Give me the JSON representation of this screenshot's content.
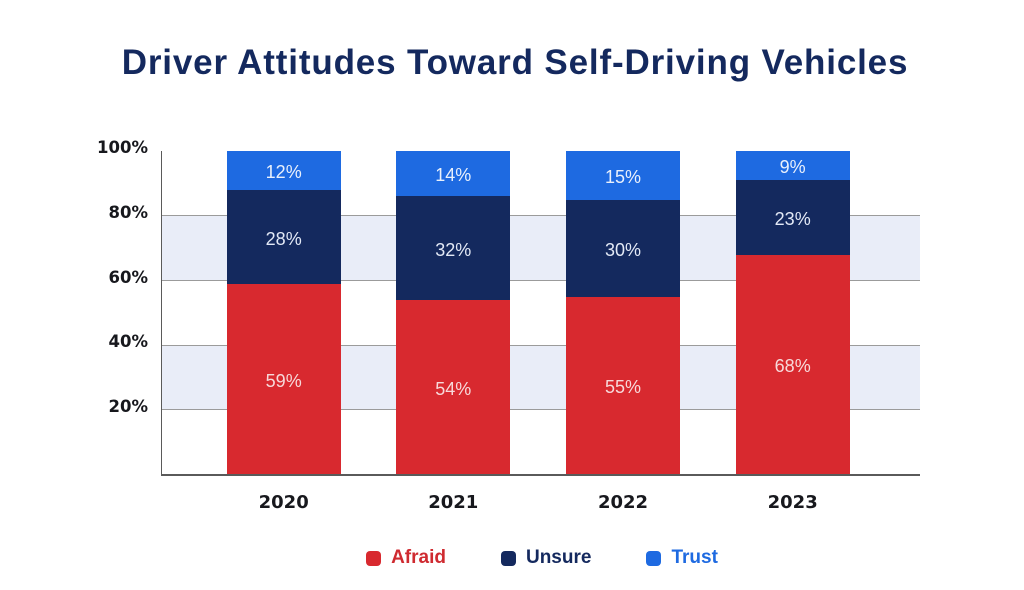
{
  "title": {
    "text": "Driver Attitudes Toward Self-Driving Vehicles",
    "color": "#14295e"
  },
  "chart_data": {
    "type": "bar",
    "stacked": true,
    "orientation": "vertical",
    "title": "Driver Attitudes Toward Self-Driving Vehicles",
    "categories": [
      "2020",
      "2021",
      "2022",
      "2023"
    ],
    "series": [
      {
        "name": "Afraid",
        "color": "#d8292f",
        "values": [
          59,
          54,
          55,
          68
        ],
        "labels": [
          "59%",
          "54%",
          "55%",
          "68%"
        ],
        "label_color": "#f7d9da"
      },
      {
        "name": "Unsure",
        "color": "#14295e",
        "values": [
          28,
          32,
          30,
          23
        ],
        "labels": [
          "28%",
          "32%",
          "30%",
          "23%"
        ],
        "label_color": "#e3e9f6"
      },
      {
        "name": "Trust",
        "color": "#1e6ae1",
        "values": [
          12,
          14,
          15,
          9
        ],
        "labels": [
          "12%",
          "14%",
          "15%",
          "9%"
        ],
        "label_color": "#e9f0fc"
      }
    ],
    "ylim": [
      0,
      100
    ],
    "y_ticks": [
      100,
      80,
      60,
      40,
      20
    ],
    "y_tick_labels": [
      "100%",
      "80%",
      "60%",
      "40%",
      "20%"
    ],
    "band_ranges": [
      [
        20,
        40
      ],
      [
        60,
        80
      ]
    ],
    "grid_values": [
      20,
      40,
      60,
      80
    ],
    "xlabel": "",
    "ylabel": "",
    "legend_position": "bottom"
  },
  "colors": {
    "background": "#ffffff",
    "band": "#e9edf8",
    "gridline": "#9b9b9b",
    "axis": "#5a5a5a",
    "tick_label": "#17181d",
    "category_label": "#17181d"
  },
  "legend": {
    "items": [
      {
        "label": "Afraid",
        "color": "#d8292f",
        "text_color": "#cf2a30"
      },
      {
        "label": "Unsure",
        "color": "#14295e",
        "text_color": "#14295e"
      },
      {
        "label": "Trust",
        "color": "#1e6ae1",
        "text_color": "#1e6ae1"
      }
    ]
  }
}
